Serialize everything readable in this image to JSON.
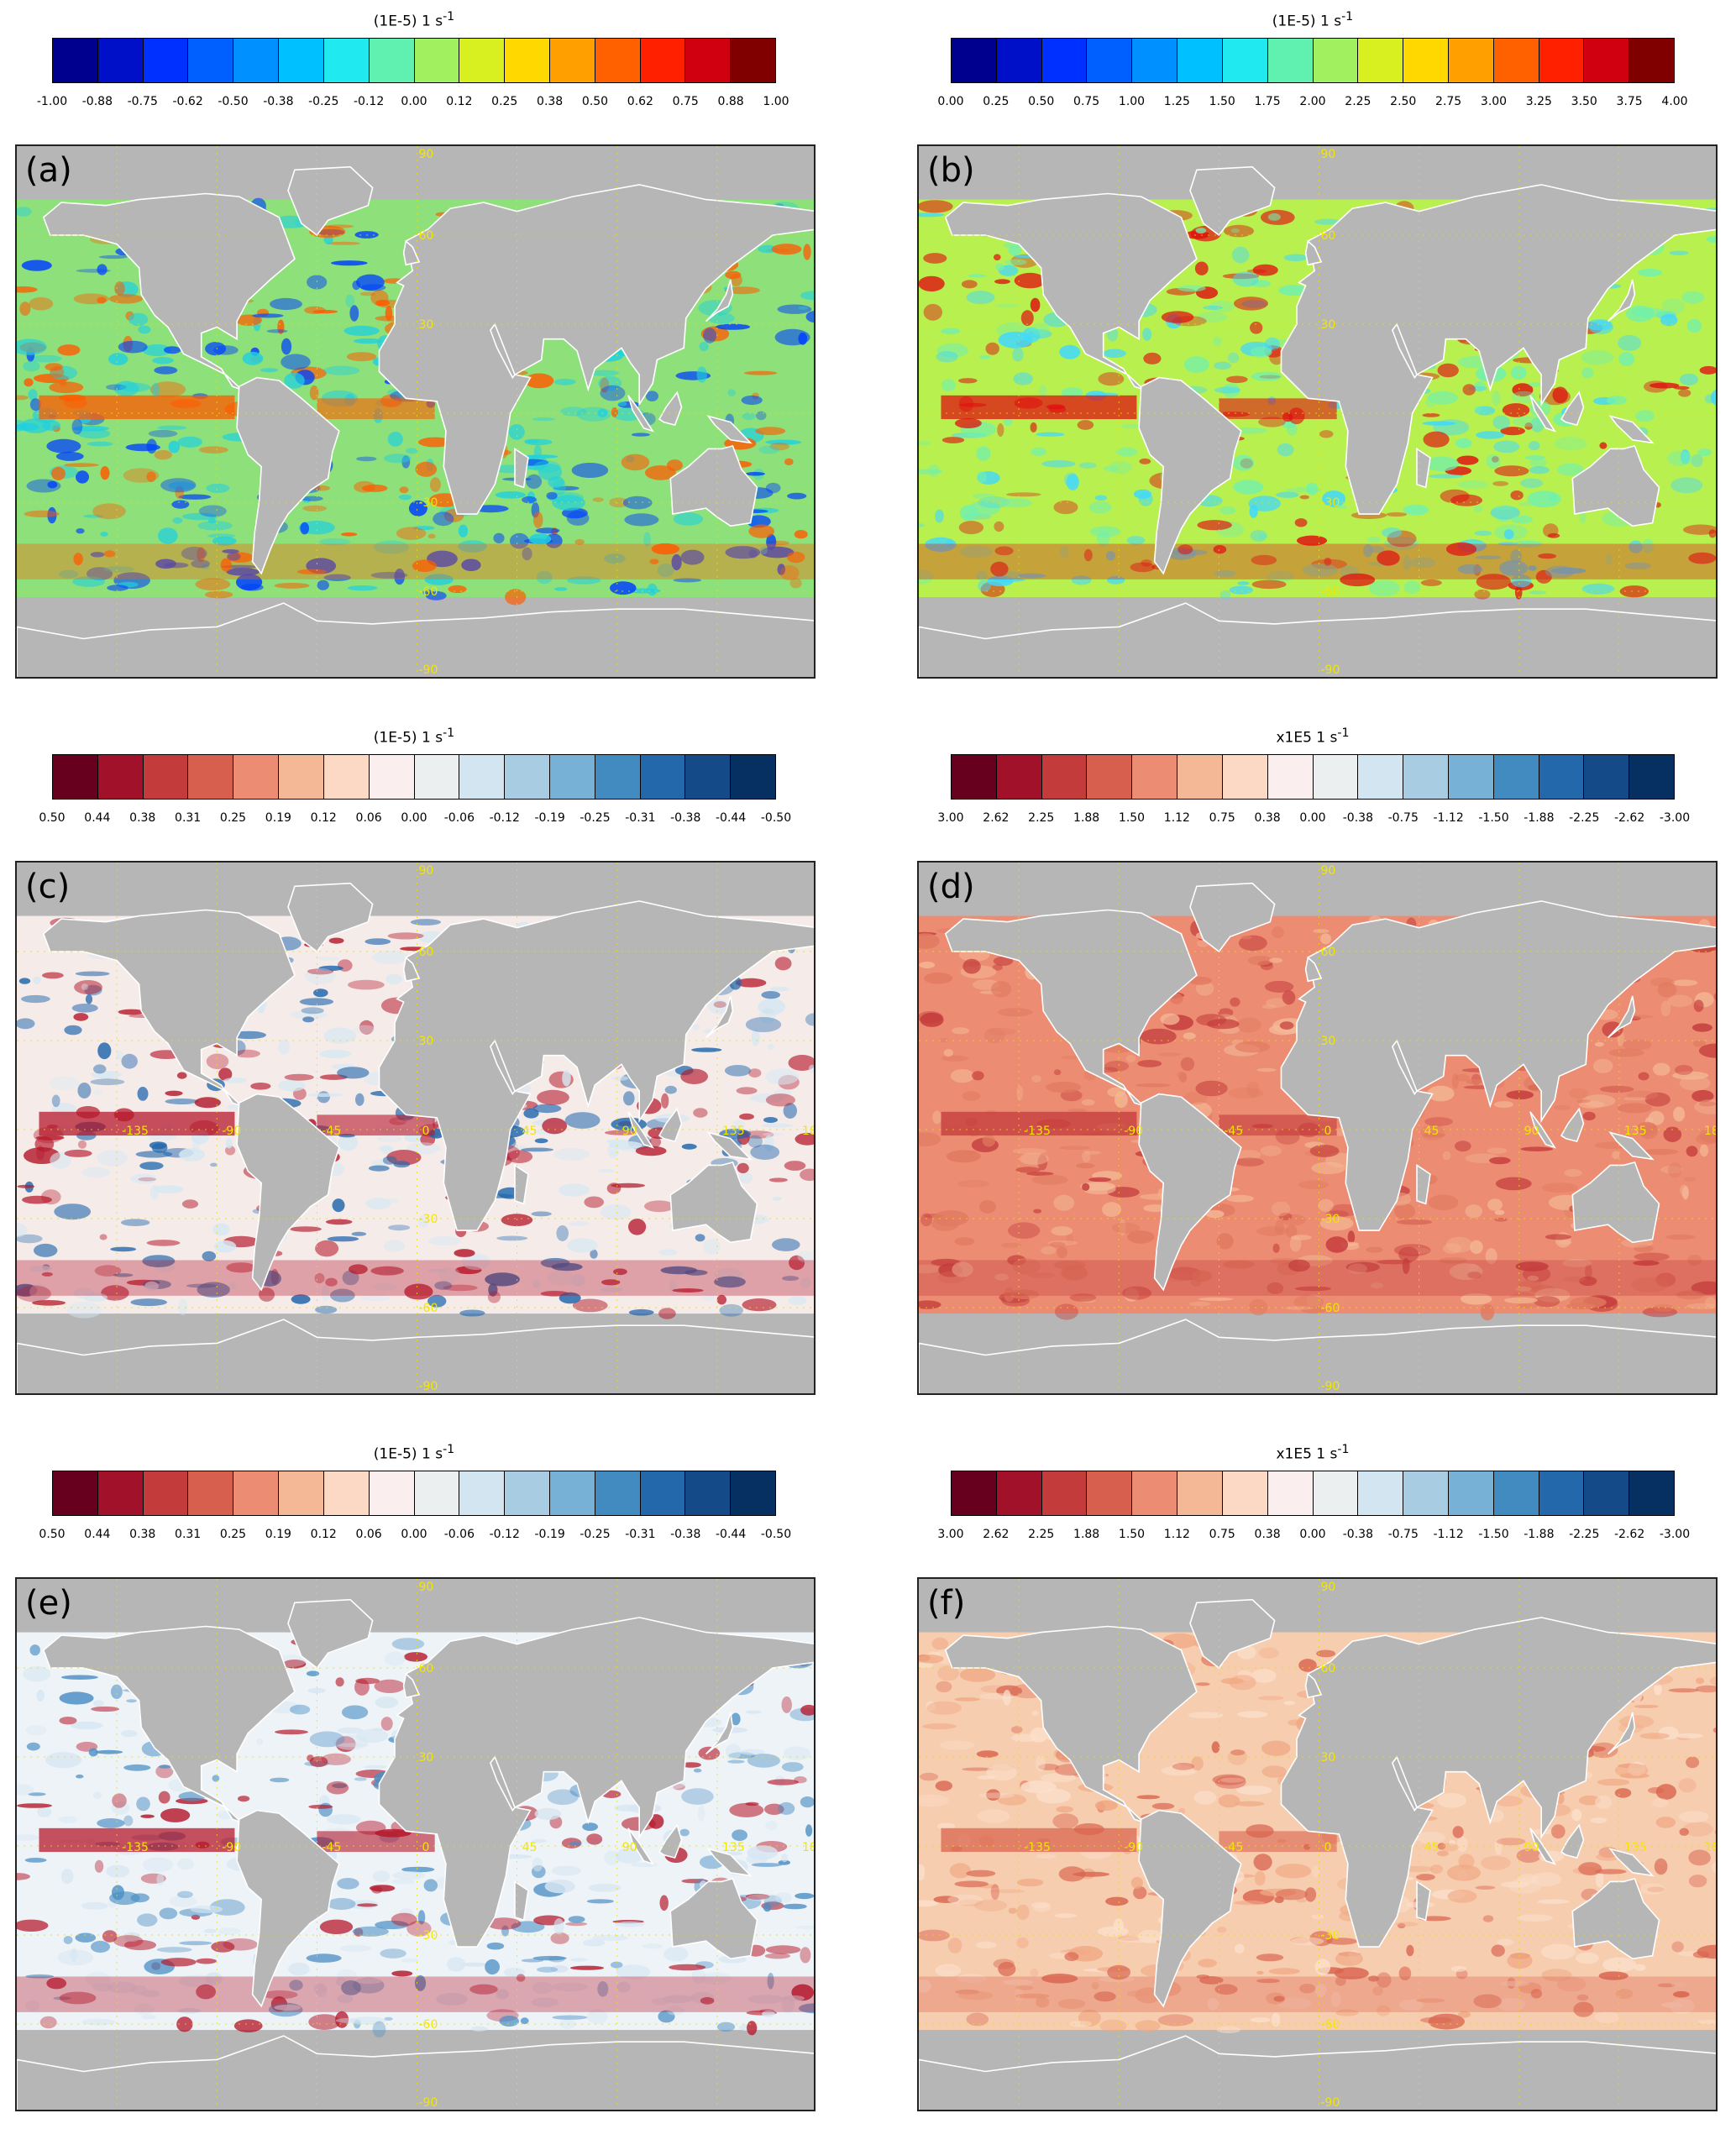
{
  "colorbars": {
    "a": {
      "title": "(1E-5) 1 s",
      "ticks": [
        "-1.00",
        "-0.88",
        "-0.75",
        "-0.62",
        "-0.50",
        "-0.38",
        "-0.25",
        "-0.12",
        "0.00",
        "0.12",
        "0.25",
        "0.38",
        "0.50",
        "0.62",
        "0.75",
        "0.88",
        "1.00"
      ],
      "colors": [
        "#00008f",
        "#0010c8",
        "#0030ff",
        "#0060ff",
        "#0090ff",
        "#00c0ff",
        "#20eaf0",
        "#60f0b0",
        "#a0f060",
        "#d8f020",
        "#ffd800",
        "#ffa000",
        "#ff6000",
        "#ff2000",
        "#d00010",
        "#800000"
      ]
    },
    "b": {
      "title": "(1E-5) 1 s",
      "ticks": [
        "0.00",
        "0.25",
        "0.50",
        "0.75",
        "1.00",
        "1.25",
        "1.50",
        "1.75",
        "2.00",
        "2.25",
        "2.50",
        "2.75",
        "3.00",
        "3.25",
        "3.50",
        "3.75",
        "4.00"
      ],
      "colors": [
        "#00008f",
        "#0010c8",
        "#0030ff",
        "#0060ff",
        "#0090ff",
        "#00c0ff",
        "#20eaf0",
        "#60f0b0",
        "#a0f060",
        "#d8f020",
        "#ffd800",
        "#ffa000",
        "#ff6000",
        "#ff2000",
        "#d00010",
        "#800000"
      ]
    },
    "c": {
      "title": "(1E-5) 1 s",
      "ticks": [
        "0.50",
        "0.44",
        "0.38",
        "0.31",
        "0.25",
        "0.19",
        "0.12",
        "0.06",
        "0.00",
        "-0.06",
        "-0.12",
        "-0.19",
        "-0.25",
        "-0.31",
        "-0.38",
        "-0.44",
        "-0.50"
      ],
      "colors": [
        "#67001f",
        "#a2112a",
        "#c43b3b",
        "#d6604d",
        "#ec8d73",
        "#f4b896",
        "#fbd9c4",
        "#fbeeee",
        "#ecefef",
        "#d2e5f1",
        "#a8cde3",
        "#77b1d5",
        "#418bc0",
        "#2468ac",
        "#134a87",
        "#053061"
      ]
    },
    "d": {
      "title": "x1E5 1 s",
      "ticks": [
        "3.00",
        "2.62",
        "2.25",
        "1.88",
        "1.50",
        "1.12",
        "0.75",
        "0.38",
        "0.00",
        "-0.38",
        "-0.75",
        "-1.12",
        "-1.50",
        "-1.88",
        "-2.25",
        "-2.62",
        "-3.00"
      ],
      "colors": [
        "#67001f",
        "#a2112a",
        "#c43b3b",
        "#d6604d",
        "#ec8d73",
        "#f4b896",
        "#fbd9c4",
        "#fbeeee",
        "#ecefef",
        "#d2e5f1",
        "#a8cde3",
        "#77b1d5",
        "#418bc0",
        "#2468ac",
        "#134a87",
        "#053061"
      ]
    },
    "e": {
      "title": "(1E-5) 1 s",
      "ticks": [
        "0.50",
        "0.44",
        "0.38",
        "0.31",
        "0.25",
        "0.19",
        "0.12",
        "0.06",
        "0.00",
        "-0.06",
        "-0.12",
        "-0.19",
        "-0.25",
        "-0.31",
        "-0.38",
        "-0.44",
        "-0.50"
      ],
      "colors": [
        "#67001f",
        "#a2112a",
        "#c43b3b",
        "#d6604d",
        "#ec8d73",
        "#f4b896",
        "#fbd9c4",
        "#fbeeee",
        "#ecefef",
        "#d2e5f1",
        "#a8cde3",
        "#77b1d5",
        "#418bc0",
        "#2468ac",
        "#134a87",
        "#053061"
      ]
    },
    "f": {
      "title": "x1E5 1 s",
      "ticks": [
        "3.00",
        "2.62",
        "2.25",
        "1.88",
        "1.50",
        "1.12",
        "0.75",
        "0.38",
        "0.00",
        "-0.38",
        "-0.75",
        "-1.12",
        "-1.50",
        "-1.88",
        "-2.25",
        "-2.62",
        "-3.00"
      ],
      "colors": [
        "#67001f",
        "#a2112a",
        "#c43b3b",
        "#d6604d",
        "#ec8d73",
        "#f4b896",
        "#fbd9c4",
        "#fbeeee",
        "#ecefef",
        "#d2e5f1",
        "#a8cde3",
        "#77b1d5",
        "#418bc0",
        "#2468ac",
        "#134a87",
        "#053061"
      ]
    }
  },
  "title_superscript": "-1",
  "panels": {
    "a": {
      "label": "(a)",
      "ocean_color": "#8ee07a",
      "hot_color": "#ff5a00",
      "cold_color": "#0040ff",
      "mid_color": "#20d0e0"
    },
    "b": {
      "label": "(b)",
      "ocean_color": "#b8f050",
      "hot_color": "#e01010",
      "cold_color": "#40d8ff",
      "mid_color": "#70f0b0"
    },
    "c": {
      "label": "(c)",
      "ocean_color": "#f5ecea",
      "hot_color": "#b5182b",
      "cold_color": "#2166ac",
      "mid_color": "#d6e8f2"
    },
    "d": {
      "label": "(d)",
      "ocean_color": "#ec8d73",
      "hot_color": "#c43b3b",
      "cold_color": "#f4b896",
      "mid_color": "#e07a60"
    },
    "e": {
      "label": "(e)",
      "ocean_color": "#eef3f7",
      "hot_color": "#b5182b",
      "cold_color": "#4a8ec4",
      "mid_color": "#d6e6f2"
    },
    "f": {
      "label": "(f)",
      "ocean_color": "#f7cdb0",
      "hot_color": "#d9644f",
      "cold_color": "#fbe0cc",
      "mid_color": "#f0a884"
    }
  },
  "grid_labels": {
    "lat": [
      "60",
      "30",
      "-30",
      "-60",
      "-90"
    ],
    "lon": [
      "-135",
      "-90",
      "-45",
      "0",
      "45",
      "90",
      "135",
      "18"
    ],
    "top": "90"
  },
  "land_color": "#b6b6b6"
}
